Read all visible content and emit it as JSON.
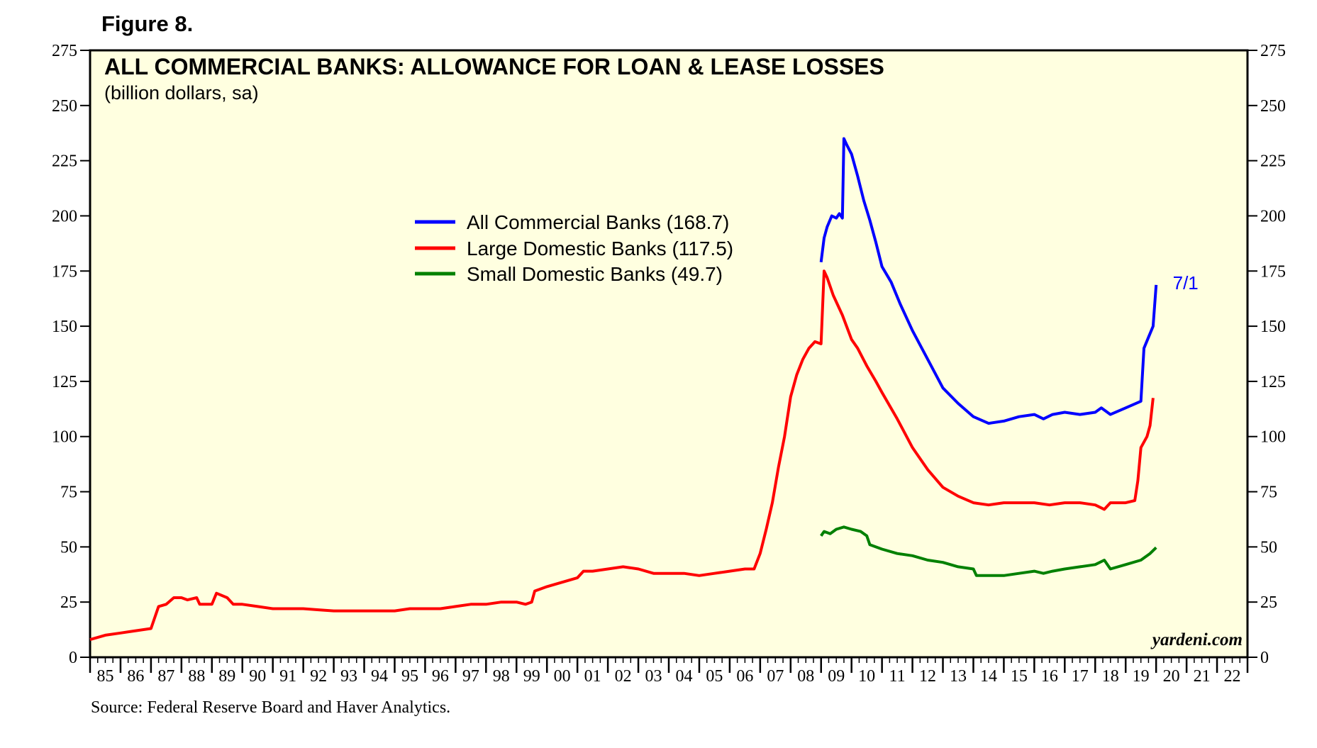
{
  "figure_label": "Figure 8.",
  "source": "Source: Federal Reserve Board and Haver Analytics.",
  "chart_data": {
    "type": "line",
    "title": "ALL COMMERCIAL BANKS: ALLOWANCE FOR LOAN & LEASE LOSSES",
    "subtitle": "(billion dollars, sa)",
    "brand": "yardeni.com",
    "ylim": [
      0,
      275
    ],
    "y_ticks": [
      0,
      25,
      50,
      75,
      100,
      125,
      150,
      175,
      200,
      225,
      250,
      275
    ],
    "y_tick_labels": [
      "0",
      "25",
      "50",
      "75",
      "100",
      "125",
      "150",
      "175",
      "200",
      "225",
      "250",
      "275"
    ],
    "xlim": [
      1985,
      2023
    ],
    "x_tick_labels": [
      "85",
      "86",
      "87",
      "88",
      "89",
      "90",
      "91",
      "92",
      "93",
      "94",
      "95",
      "96",
      "97",
      "98",
      "99",
      "00",
      "01",
      "02",
      "03",
      "04",
      "05",
      "06",
      "07",
      "08",
      "09",
      "10",
      "11",
      "12",
      "13",
      "14",
      "15",
      "16",
      "17",
      "18",
      "19",
      "20",
      "21",
      "22"
    ],
    "annotation": {
      "text": "7/1",
      "x": 2020.5,
      "y": 168.7
    },
    "colors": {
      "background": "#ffffe0",
      "all": "#0000ff",
      "large": "#ff0000",
      "small": "#008000"
    },
    "series": [
      {
        "name": "All Commercial Banks",
        "legend": "All Commercial Banks (168.7)",
        "color": "#0000ff",
        "points": [
          [
            2009.0,
            179
          ],
          [
            2009.1,
            190
          ],
          [
            2009.2,
            195
          ],
          [
            2009.35,
            200
          ],
          [
            2009.5,
            199
          ],
          [
            2009.6,
            201
          ],
          [
            2009.7,
            199
          ],
          [
            2009.75,
            235
          ],
          [
            2009.85,
            232
          ],
          [
            2010.0,
            228
          ],
          [
            2010.2,
            218
          ],
          [
            2010.4,
            207
          ],
          [
            2010.6,
            198
          ],
          [
            2010.8,
            188
          ],
          [
            2011.0,
            177
          ],
          [
            2011.3,
            170
          ],
          [
            2011.6,
            160
          ],
          [
            2012.0,
            148
          ],
          [
            2012.5,
            135
          ],
          [
            2013.0,
            122
          ],
          [
            2013.5,
            115
          ],
          [
            2014.0,
            109
          ],
          [
            2014.5,
            106
          ],
          [
            2015.0,
            107
          ],
          [
            2015.5,
            109
          ],
          [
            2016.0,
            110
          ],
          [
            2016.3,
            108
          ],
          [
            2016.6,
            110
          ],
          [
            2017.0,
            111
          ],
          [
            2017.5,
            110
          ],
          [
            2018.0,
            111
          ],
          [
            2018.2,
            113
          ],
          [
            2018.5,
            110
          ],
          [
            2019.0,
            113
          ],
          [
            2019.5,
            116
          ],
          [
            2019.6,
            140
          ],
          [
            2019.75,
            145
          ],
          [
            2019.9,
            150
          ],
          [
            2020.0,
            168.7
          ]
        ]
      },
      {
        "name": "Large Domestic Banks",
        "legend": "Large Domestic Banks (117.5)",
        "color": "#ff0000",
        "points": [
          [
            1985.0,
            8
          ],
          [
            1985.5,
            10
          ],
          [
            1986.0,
            11
          ],
          [
            1986.5,
            12
          ],
          [
            1987.0,
            13
          ],
          [
            1987.25,
            23
          ],
          [
            1987.5,
            24
          ],
          [
            1987.75,
            27
          ],
          [
            1988.0,
            27
          ],
          [
            1988.2,
            26
          ],
          [
            1988.5,
            27
          ],
          [
            1988.6,
            24
          ],
          [
            1989.0,
            24
          ],
          [
            1989.15,
            29
          ],
          [
            1989.5,
            27
          ],
          [
            1989.7,
            24
          ],
          [
            1990.0,
            24
          ],
          [
            1990.5,
            23
          ],
          [
            1991.0,
            22
          ],
          [
            1991.5,
            22
          ],
          [
            1992.0,
            22
          ],
          [
            1992.5,
            21.5
          ],
          [
            1993.0,
            21
          ],
          [
            1993.5,
            21
          ],
          [
            1994.0,
            21
          ],
          [
            1994.5,
            21
          ],
          [
            1995.0,
            21
          ],
          [
            1995.5,
            22
          ],
          [
            1996.0,
            22
          ],
          [
            1996.5,
            22
          ],
          [
            1997.0,
            23
          ],
          [
            1997.5,
            24
          ],
          [
            1998.0,
            24
          ],
          [
            1998.5,
            25
          ],
          [
            1999.0,
            25
          ],
          [
            1999.3,
            24
          ],
          [
            1999.5,
            25
          ],
          [
            1999.6,
            30
          ],
          [
            2000.0,
            32
          ],
          [
            2000.5,
            34
          ],
          [
            2001.0,
            36
          ],
          [
            2001.2,
            39
          ],
          [
            2001.5,
            39
          ],
          [
            2002.0,
            40
          ],
          [
            2002.5,
            41
          ],
          [
            2003.0,
            40
          ],
          [
            2003.5,
            38
          ],
          [
            2004.0,
            38
          ],
          [
            2004.5,
            38
          ],
          [
            2005.0,
            37
          ],
          [
            2005.5,
            38
          ],
          [
            2006.0,
            39
          ],
          [
            2006.5,
            40
          ],
          [
            2006.8,
            40
          ],
          [
            2007.0,
            47
          ],
          [
            2007.2,
            58
          ],
          [
            2007.4,
            70
          ],
          [
            2007.6,
            86
          ],
          [
            2007.8,
            100
          ],
          [
            2008.0,
            118
          ],
          [
            2008.2,
            128
          ],
          [
            2008.4,
            135
          ],
          [
            2008.6,
            140
          ],
          [
            2008.8,
            143
          ],
          [
            2009.0,
            142
          ],
          [
            2009.1,
            175
          ],
          [
            2009.2,
            172
          ],
          [
            2009.4,
            164
          ],
          [
            2009.7,
            155
          ],
          [
            2010.0,
            144
          ],
          [
            2010.2,
            140
          ],
          [
            2010.5,
            132
          ],
          [
            2010.8,
            125
          ],
          [
            2011.0,
            120
          ],
          [
            2011.5,
            108
          ],
          [
            2012.0,
            95
          ],
          [
            2012.5,
            85
          ],
          [
            2013.0,
            77
          ],
          [
            2013.5,
            73
          ],
          [
            2014.0,
            70
          ],
          [
            2014.5,
            69
          ],
          [
            2015.0,
            70
          ],
          [
            2015.5,
            70
          ],
          [
            2016.0,
            70
          ],
          [
            2016.5,
            69
          ],
          [
            2017.0,
            70
          ],
          [
            2017.5,
            70
          ],
          [
            2018.0,
            69
          ],
          [
            2018.3,
            67
          ],
          [
            2018.5,
            70
          ],
          [
            2019.0,
            70
          ],
          [
            2019.3,
            71
          ],
          [
            2019.4,
            80
          ],
          [
            2019.5,
            95
          ],
          [
            2019.7,
            100
          ],
          [
            2019.8,
            105
          ],
          [
            2019.9,
            117.5
          ]
        ]
      },
      {
        "name": "Small Domestic Banks",
        "legend": "Small Domestic Banks (49.7)",
        "color": "#008000",
        "points": [
          [
            2009.0,
            55
          ],
          [
            2009.1,
            57
          ],
          [
            2009.3,
            56
          ],
          [
            2009.5,
            58
          ],
          [
            2009.75,
            59
          ],
          [
            2010.0,
            58
          ],
          [
            2010.3,
            57
          ],
          [
            2010.5,
            55
          ],
          [
            2010.6,
            51
          ],
          [
            2011.0,
            49
          ],
          [
            2011.5,
            47
          ],
          [
            2012.0,
            46
          ],
          [
            2012.5,
            44
          ],
          [
            2013.0,
            43
          ],
          [
            2013.5,
            41
          ],
          [
            2014.0,
            40
          ],
          [
            2014.1,
            37
          ],
          [
            2014.5,
            37
          ],
          [
            2015.0,
            37
          ],
          [
            2015.5,
            38
          ],
          [
            2016.0,
            39
          ],
          [
            2016.3,
            38
          ],
          [
            2016.6,
            39
          ],
          [
            2017.0,
            40
          ],
          [
            2017.5,
            41
          ],
          [
            2018.0,
            42
          ],
          [
            2018.3,
            44
          ],
          [
            2018.5,
            40
          ],
          [
            2019.0,
            42
          ],
          [
            2019.5,
            44
          ],
          [
            2019.8,
            47
          ],
          [
            2020.0,
            49.7
          ]
        ]
      }
    ]
  }
}
